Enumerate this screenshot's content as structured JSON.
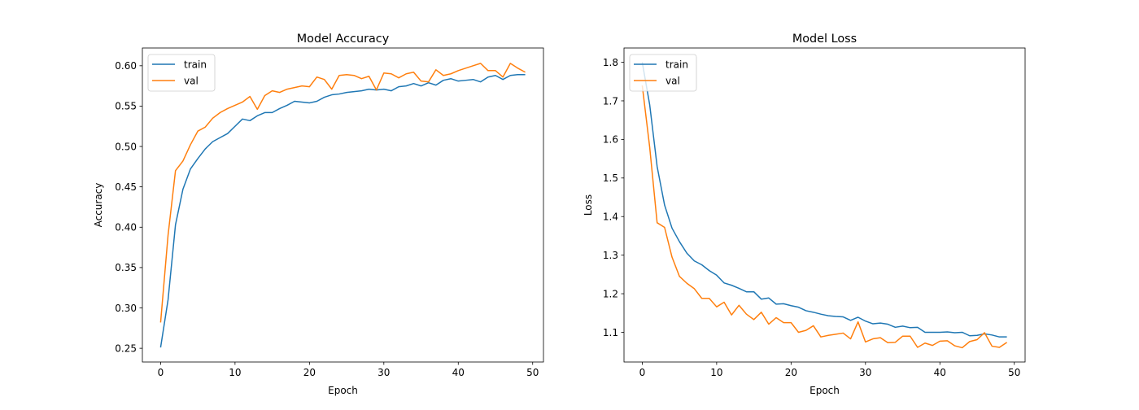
{
  "chart_data": [
    {
      "type": "line",
      "title": "Model Accuracy",
      "xlabel": "Epoch",
      "ylabel": "Accuracy",
      "xlim": [
        -2.45,
        51.45
      ],
      "ylim": [
        0.233,
        0.622
      ],
      "xticks": [
        0,
        10,
        20,
        30,
        40,
        50
      ],
      "yticks": [
        0.25,
        0.3,
        0.35,
        0.4,
        0.45,
        0.5,
        0.55,
        0.6
      ],
      "ytick_labels": [
        "0.25",
        "0.30",
        "0.35",
        "0.40",
        "0.45",
        "0.50",
        "0.55",
        "0.60"
      ],
      "legend": "upper-left",
      "grid": false,
      "series": [
        {
          "name": "train",
          "color": "#1f77b4",
          "values": [
            0.251,
            0.31,
            0.403,
            0.447,
            0.472,
            0.485,
            0.497,
            0.506,
            0.511,
            0.516,
            0.525,
            0.534,
            0.532,
            0.538,
            0.542,
            0.542,
            0.547,
            0.551,
            0.556,
            0.555,
            0.554,
            0.556,
            0.561,
            0.564,
            0.565,
            0.567,
            0.568,
            0.569,
            0.571,
            0.57,
            0.571,
            0.569,
            0.574,
            0.575,
            0.578,
            0.575,
            0.579,
            0.576,
            0.582,
            0.584,
            0.581,
            0.582,
            0.583,
            0.58,
            0.586,
            0.588,
            0.583,
            0.588,
            0.589,
            0.589
          ]
        },
        {
          "name": "val",
          "color": "#ff7f0e",
          "values": [
            0.282,
            0.39,
            0.47,
            0.482,
            0.502,
            0.519,
            0.524,
            0.535,
            0.542,
            0.547,
            0.551,
            0.555,
            0.562,
            0.546,
            0.563,
            0.569,
            0.567,
            0.571,
            0.573,
            0.575,
            0.574,
            0.586,
            0.583,
            0.571,
            0.588,
            0.589,
            0.588,
            0.584,
            0.587,
            0.57,
            0.591,
            0.59,
            0.585,
            0.59,
            0.592,
            0.581,
            0.58,
            0.595,
            0.588,
            0.59,
            0.594,
            0.597,
            0.6,
            0.603,
            0.594,
            0.594,
            0.586,
            0.603,
            0.597,
            0.592
          ]
        }
      ]
    },
    {
      "type": "line",
      "title": "Model Loss",
      "xlabel": "Epoch",
      "ylabel": "Loss",
      "xlim": [
        -2.45,
        51.45
      ],
      "ylim": [
        1.023,
        1.837
      ],
      "xticks": [
        0,
        10,
        20,
        30,
        40,
        50
      ],
      "yticks": [
        1.1,
        1.2,
        1.3,
        1.4,
        1.5,
        1.6,
        1.7,
        1.8
      ],
      "ytick_labels": [
        "1.1",
        "1.2",
        "1.3",
        "1.4",
        "1.5",
        "1.6",
        "1.7",
        "1.8"
      ],
      "legend": "upper-left",
      "grid": false,
      "series": [
        {
          "name": "train",
          "color": "#1f77b4",
          "values": [
            1.8,
            1.69,
            1.53,
            1.43,
            1.37,
            1.335,
            1.305,
            1.285,
            1.275,
            1.26,
            1.248,
            1.228,
            1.222,
            1.214,
            1.205,
            1.205,
            1.186,
            1.189,
            1.173,
            1.174,
            1.169,
            1.165,
            1.156,
            1.152,
            1.147,
            1.143,
            1.141,
            1.14,
            1.131,
            1.139,
            1.129,
            1.122,
            1.124,
            1.121,
            1.113,
            1.116,
            1.112,
            1.113,
            1.1,
            1.1,
            1.1,
            1.101,
            1.099,
            1.1,
            1.091,
            1.092,
            1.096,
            1.093,
            1.088,
            1.088
          ]
        },
        {
          "name": "val",
          "color": "#ff7f0e",
          "values": [
            1.74,
            1.58,
            1.384,
            1.372,
            1.295,
            1.245,
            1.227,
            1.213,
            1.188,
            1.188,
            1.166,
            1.178,
            1.145,
            1.17,
            1.147,
            1.133,
            1.152,
            1.121,
            1.138,
            1.125,
            1.125,
            1.1,
            1.105,
            1.117,
            1.088,
            1.092,
            1.095,
            1.098,
            1.083,
            1.127,
            1.075,
            1.083,
            1.086,
            1.073,
            1.074,
            1.09,
            1.09,
            1.061,
            1.072,
            1.066,
            1.077,
            1.078,
            1.065,
            1.06,
            1.076,
            1.081,
            1.099,
            1.064,
            1.061,
            1.074
          ]
        }
      ]
    }
  ]
}
